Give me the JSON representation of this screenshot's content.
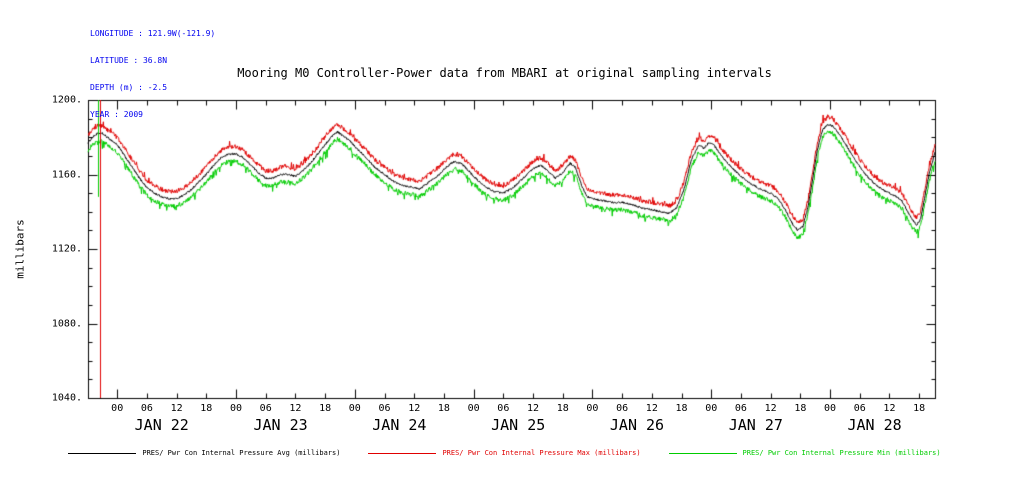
{
  "header": {
    "longitude": "LONGITUDE : 121.9W(-121.9)",
    "latitude": "LATITUDE : 36.8N",
    "depth": "DEPTH (m) : -2.5",
    "year": "YEAR : 2009"
  },
  "colors": {
    "header_text": "#0000f0",
    "avg_line": "#000000",
    "max_line": "#e00000",
    "min_line": "#00cc00"
  },
  "chart_data": {
    "type": "line",
    "title": "Mooring M0 Controller-Power data from MBARI at original sampling intervals",
    "ylabel": "millibars",
    "ylim": [
      1040,
      1200
    ],
    "ytick_values": [
      1040,
      1080,
      1120,
      1160,
      1200
    ],
    "ytick_labels": [
      "1040.",
      "1080.",
      "1120.",
      "1160.",
      "1200."
    ],
    "y_minor_step": 10,
    "x_range_hours": [
      -5.9,
      165.2
    ],
    "x_hours_origin": "JAN 22 00:00",
    "hour_labels": [
      "00",
      "06",
      "12",
      "18"
    ],
    "day_labels": [
      "JAN 22",
      "JAN 23",
      "JAN 24",
      "JAN 25",
      "JAN 26",
      "JAN 27",
      "JAN 28"
    ],
    "series": [
      {
        "name": "PRES/ Pwr Con Internal Pressure Avg (millibars)",
        "color": "#000000",
        "offset": 0,
        "jitter": 1.0,
        "spike": 0
      },
      {
        "name": "PRES/ Pwr Con Internal Pressure Max (millibars)",
        "color": "#e00000",
        "offset": 4.0,
        "jitter": 2.4,
        "spike": 2.5
      },
      {
        "name": "PRES/ Pwr Con Internal Pressure Min (millibars)",
        "color": "#00cc00",
        "offset": -4.0,
        "jitter": 2.4,
        "spike": -3.5
      }
    ],
    "avg_control_points_hour_value": [
      [
        -5.9,
        1177
      ],
      [
        -5,
        1180
      ],
      [
        -4,
        1182
      ],
      [
        -3,
        1182
      ],
      [
        -2,
        1180
      ],
      [
        -1,
        1178
      ],
      [
        0,
        1176
      ],
      [
        1.5,
        1170
      ],
      [
        3,
        1164
      ],
      [
        4.5,
        1158
      ],
      [
        6,
        1153
      ],
      [
        7.5,
        1150
      ],
      [
        9,
        1148
      ],
      [
        10.5,
        1147
      ],
      [
        12,
        1147
      ],
      [
        13.5,
        1149
      ],
      [
        15,
        1152
      ],
      [
        16.5,
        1156
      ],
      [
        18,
        1160
      ],
      [
        19.5,
        1165
      ],
      [
        21,
        1169
      ],
      [
        22.5,
        1171
      ],
      [
        24,
        1171
      ],
      [
        25.5,
        1169
      ],
      [
        27,
        1165
      ],
      [
        28.5,
        1161
      ],
      [
        30,
        1158
      ],
      [
        31.5,
        1158
      ],
      [
        33,
        1160
      ],
      [
        34.5,
        1160
      ],
      [
        36,
        1159
      ],
      [
        37.5,
        1162
      ],
      [
        39,
        1166
      ],
      [
        40.5,
        1171
      ],
      [
        42,
        1176
      ],
      [
        43.5,
        1181
      ],
      [
        44.5,
        1183
      ],
      [
        45.5,
        1181
      ],
      [
        47,
        1178
      ],
      [
        48,
        1175
      ],
      [
        50,
        1170
      ],
      [
        52,
        1164
      ],
      [
        54,
        1160
      ],
      [
        56,
        1156
      ],
      [
        58,
        1154
      ],
      [
        60,
        1153
      ],
      [
        61,
        1152
      ],
      [
        62,
        1154
      ],
      [
        63.5,
        1157
      ],
      [
        65,
        1160
      ],
      [
        66.5,
        1164
      ],
      [
        68,
        1167
      ],
      [
        69.5,
        1166
      ],
      [
        71,
        1162
      ],
      [
        72,
        1159
      ],
      [
        74,
        1154
      ],
      [
        76,
        1151
      ],
      [
        78,
        1150
      ],
      [
        80,
        1153
      ],
      [
        82,
        1158
      ],
      [
        84,
        1163
      ],
      [
        85.5,
        1165
      ],
      [
        87,
        1162
      ],
      [
        88.5,
        1158
      ],
      [
        90,
        1161
      ],
      [
        91.5,
        1166
      ],
      [
        92.5,
        1164
      ],
      [
        94,
        1153
      ],
      [
        95,
        1148
      ],
      [
        96,
        1147
      ],
      [
        98,
        1146
      ],
      [
        100,
        1145
      ],
      [
        102,
        1145
      ],
      [
        104,
        1144
      ],
      [
        106,
        1142
      ],
      [
        108,
        1141
      ],
      [
        110,
        1140
      ],
      [
        111.5,
        1139
      ],
      [
        113,
        1142
      ],
      [
        114.5,
        1152
      ],
      [
        116,
        1168
      ],
      [
        117.5,
        1176
      ],
      [
        118.5,
        1174
      ],
      [
        119.5,
        1177
      ],
      [
        120.5,
        1176
      ],
      [
        122,
        1170
      ],
      [
        124,
        1164
      ],
      [
        126,
        1159
      ],
      [
        128,
        1155
      ],
      [
        130,
        1152
      ],
      [
        132,
        1150
      ],
      [
        133.5,
        1147
      ],
      [
        135,
        1141
      ],
      [
        136.5,
        1133
      ],
      [
        137.5,
        1130
      ],
      [
        138.5,
        1132
      ],
      [
        139.5,
        1142
      ],
      [
        140.5,
        1158
      ],
      [
        141.5,
        1174
      ],
      [
        142.5,
        1184
      ],
      [
        143.5,
        1187
      ],
      [
        144.5,
        1186
      ],
      [
        145.5,
        1183
      ],
      [
        147,
        1177
      ],
      [
        148.5,
        1170
      ],
      [
        150,
        1164
      ],
      [
        151.5,
        1159
      ],
      [
        153,
        1155
      ],
      [
        154.5,
        1152
      ],
      [
        156,
        1150
      ],
      [
        157.5,
        1148
      ],
      [
        158.5,
        1146
      ],
      [
        159.5,
        1141
      ],
      [
        160.5,
        1136
      ],
      [
        161.5,
        1133
      ],
      [
        162.3,
        1136
      ],
      [
        163,
        1146
      ],
      [
        164,
        1160
      ],
      [
        165.2,
        1172
      ]
    ],
    "spike_lines": [
      {
        "hour": -3.8,
        "color": "#00cc00",
        "value_from": 1148,
        "value_to": 1200
      },
      {
        "hour": -3.5,
        "color": "#e00000",
        "value_from": 1040,
        "value_to": 1200
      }
    ]
  }
}
